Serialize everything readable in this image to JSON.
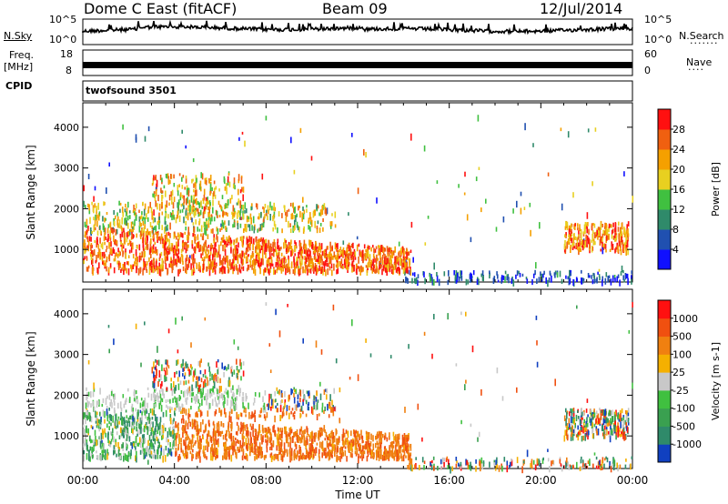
{
  "header": {
    "station": "Dome C East (fitACF)",
    "beam": "Beam 09",
    "date": "12/Jul/2014"
  },
  "top_panels": {
    "nsky_label": "N.Sky",
    "nsky_ticks": [
      "10^5",
      "10^0"
    ],
    "nsearch_label": "N.Search",
    "nsearch_ticks": [
      "10^5",
      "10^0"
    ],
    "freq_label": "Freq.",
    "freq_unit": "[MHz]",
    "freq_ticks": [
      "18",
      "8"
    ],
    "nave_label": "Nave",
    "nave_ticks": [
      "60",
      "0"
    ],
    "cpid_label": "CPID",
    "cpid_value": "twofsound 3501"
  },
  "chart_data": [
    {
      "type": "heatmap",
      "name": "power",
      "ylabel": "Slant Range [km]",
      "ylim": [
        200,
        4600
      ],
      "yticks": [
        "1000",
        "2000",
        "3000",
        "4000"
      ],
      "xlim": [
        0,
        24
      ],
      "colorbar_label": "Power [dB]",
      "colorbar_ticks": [
        "4",
        "8",
        "12",
        "16",
        "20",
        "24",
        "28"
      ],
      "colorbar_colors": [
        "#1010ff",
        "#2050b0",
        "#2f8a6a",
        "#40c040",
        "#e8d020",
        "#f5a000",
        "#f06010",
        "#ff1010"
      ]
    },
    {
      "type": "heatmap",
      "name": "velocity",
      "ylabel": "Slant Range [km]",
      "ylim": [
        200,
        4600
      ],
      "yticks": [
        "1000",
        "2000",
        "3000",
        "4000"
      ],
      "xlim": [
        0,
        24
      ],
      "xlabel": "Time UT",
      "xticks": [
        "00:00",
        "04:00",
        "08:00",
        "12:00",
        "16:00",
        "20:00",
        "00:00"
      ],
      "colorbar_label": "Velocity [m s-1]",
      "colorbar_ticks": [
        "1000",
        "500",
        "100",
        "25",
        "-25",
        "-100",
        "-500",
        "-1000"
      ],
      "colorbar_colors": [
        "#1040c0",
        "#2f8a6a",
        "#3aa050",
        "#40c040",
        "#c8c8c8",
        "#f5b000",
        "#f08010",
        "#f05010",
        "#ff1010"
      ]
    }
  ]
}
